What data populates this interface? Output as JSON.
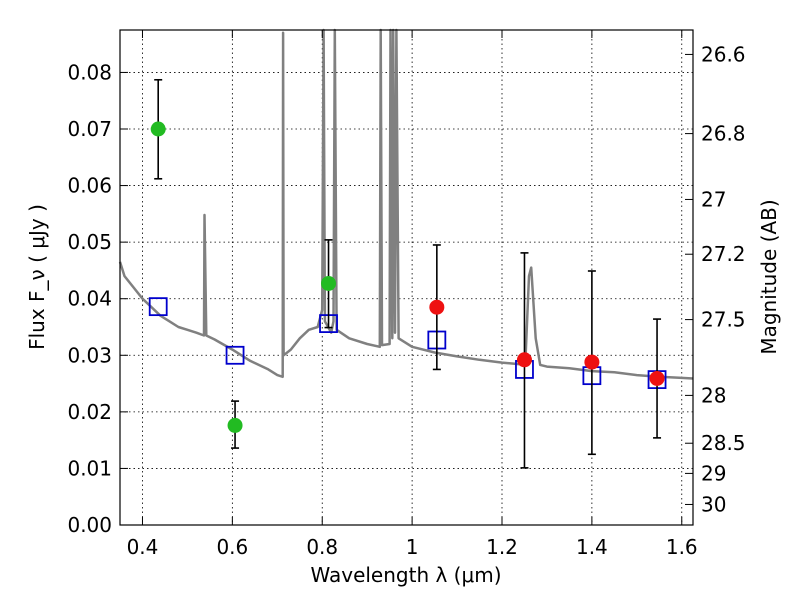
{
  "chart_data": {
    "type": "scatter",
    "xlabel": "Wavelength  λ (μm)",
    "ylabel": "Flux  F_ν  ( μJy )",
    "ylabel_right": "Magnitude (AB)",
    "xlim": [
      0.35,
      1.625
    ],
    "ylim": [
      0.0,
      0.0875
    ],
    "grid": true,
    "x_ticks": [
      {
        "value": 0.4,
        "label": "0.4"
      },
      {
        "value": 0.6,
        "label": "0.6"
      },
      {
        "value": 0.8,
        "label": "0.8"
      },
      {
        "value": 1.0,
        "label": "1"
      },
      {
        "value": 1.2,
        "label": "1.2"
      },
      {
        "value": 1.4,
        "label": "1.4"
      },
      {
        "value": 1.6,
        "label": "1.6"
      }
    ],
    "y_ticks": [
      {
        "value": 0.0,
        "label": "0.00"
      },
      {
        "value": 0.01,
        "label": "0.01"
      },
      {
        "value": 0.02,
        "label": "0.02"
      },
      {
        "value": 0.03,
        "label": "0.03"
      },
      {
        "value": 0.04,
        "label": "0.04"
      },
      {
        "value": 0.05,
        "label": "0.05"
      },
      {
        "value": 0.06,
        "label": "0.06"
      },
      {
        "value": 0.07,
        "label": "0.07"
      },
      {
        "value": 0.08,
        "label": "0.08"
      }
    ],
    "y_right_ticks": [
      {
        "value": 26.6,
        "label": "26.6"
      },
      {
        "value": 26.8,
        "label": "26.8"
      },
      {
        "value": 27.0,
        "label": "27"
      },
      {
        "value": 27.2,
        "label": "27.2"
      },
      {
        "value": 27.5,
        "label": "27.5"
      },
      {
        "value": 28.0,
        "label": "28"
      },
      {
        "value": 28.5,
        "label": "28.5"
      },
      {
        "value": 29.0,
        "label": "29"
      },
      {
        "value": 30.0,
        "label": "30"
      }
    ],
    "colors": {
      "green": "#22bb22",
      "red": "#ee1111",
      "model_box": "#0000cc",
      "sed": "#808080"
    },
    "observed_green": [
      {
        "x": 0.435,
        "y": 0.07,
        "ylo": 0.0612,
        "yhi": 0.0787
      },
      {
        "x": 0.606,
        "y": 0.0176,
        "ylo": 0.0136,
        "yhi": 0.0219
      },
      {
        "x": 0.814,
        "y": 0.0427,
        "ylo": 0.0349,
        "yhi": 0.0504
      }
    ],
    "observed_red": [
      {
        "x": 1.055,
        "y": 0.0385,
        "ylo": 0.0275,
        "yhi": 0.0495
      },
      {
        "x": 1.25,
        "y": 0.0292,
        "ylo": 0.0101,
        "yhi": 0.0481
      },
      {
        "x": 1.4,
        "y": 0.0288,
        "ylo": 0.0125,
        "yhi": 0.0449
      },
      {
        "x": 1.545,
        "y": 0.0259,
        "ylo": 0.0154,
        "yhi": 0.0364
      }
    ],
    "model_photometry": [
      {
        "x": 0.435,
        "y": 0.0386
      },
      {
        "x": 0.606,
        "y": 0.03
      },
      {
        "x": 0.814,
        "y": 0.0356
      },
      {
        "x": 1.055,
        "y": 0.0327
      },
      {
        "x": 1.25,
        "y": 0.0275
      },
      {
        "x": 1.4,
        "y": 0.0264
      },
      {
        "x": 1.545,
        "y": 0.0257
      }
    ],
    "sed_model": [
      [
        0.35,
        0.0465
      ],
      [
        0.36,
        0.044
      ],
      [
        0.38,
        0.042
      ],
      [
        0.4,
        0.04
      ],
      [
        0.42,
        0.0385
      ],
      [
        0.44,
        0.037
      ],
      [
        0.46,
        0.036
      ],
      [
        0.48,
        0.035
      ],
      [
        0.5,
        0.0345
      ],
      [
        0.52,
        0.034
      ],
      [
        0.537,
        0.0335
      ],
      [
        0.538,
        0.0548
      ],
      [
        0.542,
        0.0335
      ],
      [
        0.56,
        0.0328
      ],
      [
        0.6,
        0.031
      ],
      [
        0.64,
        0.029
      ],
      [
        0.68,
        0.0275
      ],
      [
        0.7,
        0.0265
      ],
      [
        0.712,
        0.0262
      ],
      [
        0.713,
        0.087
      ],
      [
        0.714,
        0.03
      ],
      [
        0.73,
        0.031
      ],
      [
        0.75,
        0.033
      ],
      [
        0.77,
        0.0345
      ],
      [
        0.79,
        0.035
      ],
      [
        0.8,
        0.038
      ],
      [
        0.803,
        0.0875
      ],
      [
        0.806,
        0.036
      ],
      [
        0.82,
        0.034
      ],
      [
        0.825,
        0.036
      ],
      [
        0.828,
        0.0875
      ],
      [
        0.832,
        0.0345
      ],
      [
        0.86,
        0.033
      ],
      [
        0.9,
        0.032
      ],
      [
        0.928,
        0.0315
      ],
      [
        0.93,
        0.0875
      ],
      [
        0.933,
        0.0318
      ],
      [
        0.95,
        0.032
      ],
      [
        0.952,
        0.0875
      ],
      [
        0.956,
        0.033
      ],
      [
        0.958,
        0.0875
      ],
      [
        0.962,
        0.034
      ],
      [
        0.965,
        0.0875
      ],
      [
        0.97,
        0.033
      ],
      [
        1.0,
        0.0315
      ],
      [
        1.05,
        0.0305
      ],
      [
        1.1,
        0.0298
      ],
      [
        1.15,
        0.0292
      ],
      [
        1.2,
        0.0287
      ],
      [
        1.24,
        0.0284
      ],
      [
        1.252,
        0.029
      ],
      [
        1.26,
        0.044
      ],
      [
        1.265,
        0.0455
      ],
      [
        1.275,
        0.033
      ],
      [
        1.285,
        0.0283
      ],
      [
        1.3,
        0.028
      ],
      [
        1.35,
        0.0277
      ],
      [
        1.4,
        0.0272
      ],
      [
        1.45,
        0.027
      ],
      [
        1.5,
        0.0265
      ],
      [
        1.55,
        0.0262
      ],
      [
        1.6,
        0.026
      ],
      [
        1.625,
        0.0259
      ]
    ]
  }
}
